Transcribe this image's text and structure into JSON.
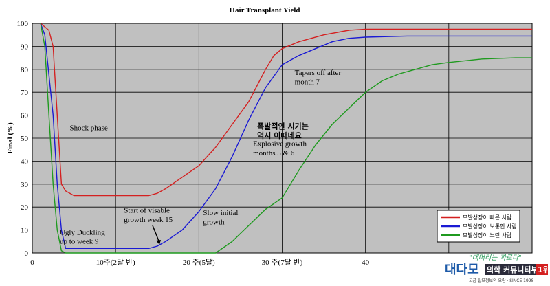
{
  "chart_data": {
    "type": "line",
    "title": "Hair Transplant Yield",
    "ylabel": "Final (%)",
    "xlabel": "",
    "xlim": [
      0,
      60
    ],
    "ylim": [
      0,
      100
    ],
    "grid": true,
    "legend_position": "bottom-right",
    "x_ticks": [
      {
        "value": 0,
        "label": "0"
      },
      {
        "value": 10,
        "label": "10주(2달 반)"
      },
      {
        "value": 20,
        "label": "20 주(5달)"
      },
      {
        "value": 30,
        "label": "30 주(7달 반)"
      },
      {
        "value": 40,
        "label": "40"
      }
    ],
    "x_gridlines": [
      10,
      20,
      30,
      40,
      50
    ],
    "y_ticks": [
      0,
      10,
      20,
      30,
      40,
      50,
      60,
      70,
      80,
      90,
      100
    ],
    "series": [
      {
        "name": "모발성장이 빠른 사람",
        "color": "#d42020",
        "points": [
          [
            1,
            100
          ],
          [
            2,
            97
          ],
          [
            2.5,
            90
          ],
          [
            3,
            60
          ],
          [
            3.5,
            30
          ],
          [
            4,
            27
          ],
          [
            5,
            25
          ],
          [
            8,
            25
          ],
          [
            12,
            25
          ],
          [
            14,
            25
          ],
          [
            15,
            26
          ],
          [
            16,
            28
          ],
          [
            18,
            33
          ],
          [
            20,
            38
          ],
          [
            21,
            42
          ],
          [
            22,
            46
          ],
          [
            24,
            56
          ],
          [
            26,
            66
          ],
          [
            28,
            80
          ],
          [
            29,
            86
          ],
          [
            30,
            89
          ],
          [
            32,
            92
          ],
          [
            35,
            95
          ],
          [
            38,
            97
          ],
          [
            40,
            97.5
          ],
          [
            45,
            97.5
          ],
          [
            50,
            97.5
          ],
          [
            60,
            97.5
          ]
        ]
      },
      {
        "name": "모발성장이 보통인 사람",
        "color": "#1a1ad4",
        "points": [
          [
            1,
            100
          ],
          [
            1.5,
            95
          ],
          [
            2.5,
            60
          ],
          [
            3,
            30
          ],
          [
            3.5,
            10
          ],
          [
            4,
            2
          ],
          [
            5,
            2
          ],
          [
            8,
            2
          ],
          [
            12,
            2
          ],
          [
            14,
            2
          ],
          [
            15,
            3
          ],
          [
            16,
            5
          ],
          [
            18,
            10
          ],
          [
            20,
            18
          ],
          [
            22,
            28
          ],
          [
            24,
            42
          ],
          [
            26,
            58
          ],
          [
            28,
            72
          ],
          [
            30,
            82
          ],
          [
            32,
            86
          ],
          [
            34,
            89
          ],
          [
            36,
            92
          ],
          [
            38,
            93.5
          ],
          [
            40,
            94
          ],
          [
            45,
            94.5
          ],
          [
            50,
            94.5
          ],
          [
            60,
            94.5
          ]
        ]
      },
      {
        "name": "모발성장이 느린 사람",
        "color": "#1f9a1f",
        "points": [
          [
            1,
            100
          ],
          [
            1.5,
            90
          ],
          [
            2,
            60
          ],
          [
            2.5,
            30
          ],
          [
            3,
            10
          ],
          [
            3.5,
            1
          ],
          [
            4,
            0
          ],
          [
            10,
            0
          ],
          [
            18,
            0
          ],
          [
            22,
            0
          ],
          [
            24,
            5
          ],
          [
            26,
            12
          ],
          [
            28,
            19
          ],
          [
            30,
            24
          ],
          [
            32,
            36
          ],
          [
            34,
            47
          ],
          [
            36,
            56
          ],
          [
            38,
            63
          ],
          [
            40,
            70
          ],
          [
            42,
            75
          ],
          [
            44,
            78
          ],
          [
            46,
            80
          ],
          [
            48,
            82
          ],
          [
            50,
            83
          ],
          [
            54,
            84.5
          ],
          [
            58,
            85
          ],
          [
            60,
            85
          ]
        ]
      }
    ],
    "annotations": [
      {
        "text": "Shock phase",
        "x": 4.5,
        "y": 53.5
      },
      {
        "text": "Ugly Duckling",
        "x": 3.3,
        "y": 8
      },
      {
        "text": "up to week 9",
        "x": 3.3,
        "y": 4
      },
      {
        "text": "Start of visable",
        "x": 11,
        "y": 17.5
      },
      {
        "text": "growth week 15",
        "x": 11,
        "y": 13.5
      },
      {
        "text": "Slow initial",
        "x": 20.5,
        "y": 16.5
      },
      {
        "text": "growth",
        "x": 20.5,
        "y": 12.5
      },
      {
        "text": "폭발적인 시기는",
        "x": 27,
        "y": 54,
        "korean": true
      },
      {
        "text": "역시 이때네요",
        "x": 27,
        "y": 50,
        "korean": true
      },
      {
        "text": "Explosive growth",
        "x": 26.5,
        "y": 46.5
      },
      {
        "text": "months 5 & 6",
        "x": 26.5,
        "y": 42.5
      },
      {
        "text": "Tapers off after",
        "x": 31.5,
        "y": 77.5
      },
      {
        "text": "month 7",
        "x": 31.5,
        "y": 73.5
      }
    ]
  },
  "watermark": {
    "tagline": "\"대머리는 과로다\"",
    "logo": "대다모",
    "box_text": "의학 커뮤니티부문",
    "rank": "1위",
    "sub": "고급 탈모정보의 요람 · SINCE 1998"
  }
}
